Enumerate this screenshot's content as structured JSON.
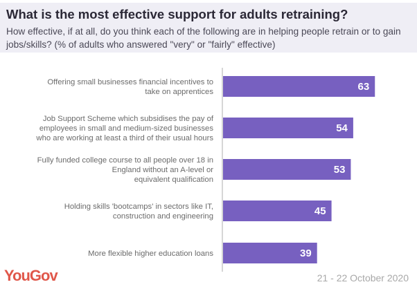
{
  "header": {
    "title": "What is the most effective support for adults retraining?",
    "subtitle": "How effective, if at all, do you think each of the following are in helping people retrain or to gain jobs/skills? (% of adults who answered \"very\" or \"fairly\" effective)"
  },
  "footer": {
    "logo": "YouGov",
    "date": "21 - 22 October 2020"
  },
  "colors": {
    "bar": "#7760c0",
    "logo": "#e0574a"
  },
  "chart_data": {
    "type": "bar",
    "orientation": "horizontal",
    "title": "What is the most effective support for adults retraining?",
    "categories": [
      [
        "Offering small businesses financial incentives to",
        "take on apprentices"
      ],
      [
        "Job Support Scheme which subsidises the pay of",
        "employees in small and medium-sized businesses",
        "who are working at least a third of their usual hours"
      ],
      [
        "Fully funded college course to all people over 18 in",
        "England without an A-level or",
        "equivalent qualification"
      ],
      [
        "Holding skills 'bootcamps' in sectors like IT,",
        "construction and engineering"
      ],
      [
        "More flexible higher education loans"
      ]
    ],
    "values": [
      63,
      54,
      53,
      45,
      39
    ],
    "xlabel": "",
    "ylabel": "",
    "xlim": [
      0,
      80
    ],
    "grid": false,
    "legend": "none"
  }
}
